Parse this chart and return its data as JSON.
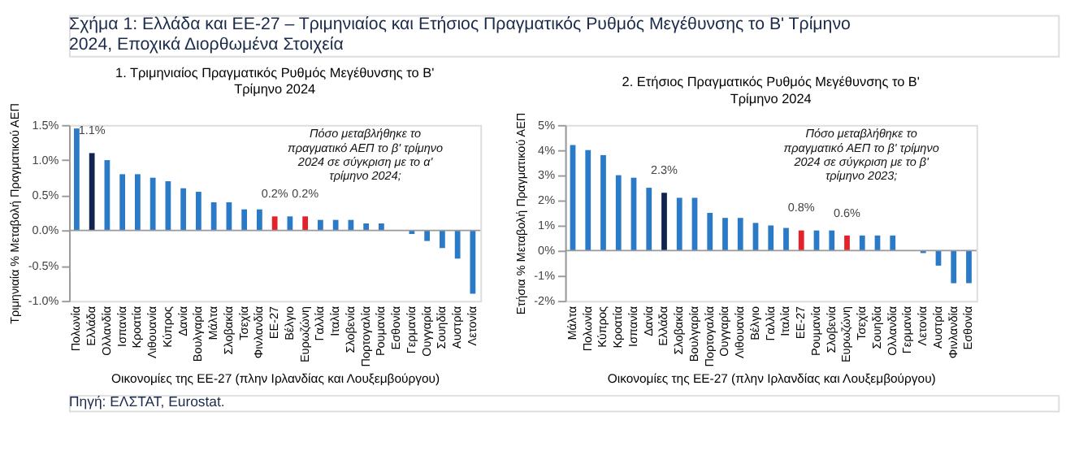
{
  "chart_data": [
    {
      "type": "bar",
      "title": "1. Τριμηνιαίος Πραγματικός Ρυθμός Μεγέθυνσης το Β' Τρίμηνο 2024",
      "xlabel": "Οικονομίες της ΕΕ-27 (πλην Ιρλανδίας και Λουξεμβούργου)",
      "ylabel": "Τριμηνιαία % Μεταβολή Πραγματικού ΑΕΠ",
      "categories": [
        "Πολωνία",
        "Ελλάδα",
        "Ολλανδία",
        "Ισπανία",
        "Κροατία",
        "Λιθουανία",
        "Κύπρος",
        "Δανία",
        "Βουλγαρία",
        "Μάλτα",
        "Σλοβακία",
        "Τσεχία",
        "Φινλανδία",
        "ΕΕ-27",
        "Βέλγιο",
        "Ευρωζώνη",
        "Γαλλία",
        "Ιταλία",
        "Σλοβενία",
        "Πορτογαλία",
        "Ρουμανία",
        "Εσθονία",
        "Γερμανία",
        "Ουγγαρία",
        "Σουηδία",
        "Αυστρία",
        "Λετονία"
      ],
      "values": [
        1.45,
        1.1,
        1.0,
        0.8,
        0.8,
        0.75,
        0.7,
        0.6,
        0.55,
        0.4,
        0.4,
        0.3,
        0.3,
        0.2,
        0.2,
        0.2,
        0.15,
        0.15,
        0.15,
        0.1,
        0.1,
        0,
        -0.05,
        -0.15,
        -0.25,
        -0.4,
        -0.9
      ],
      "value_labels": [
        null,
        "1.1%",
        null,
        null,
        null,
        null,
        null,
        null,
        null,
        null,
        null,
        null,
        null,
        "0.2%",
        null,
        "0.2%",
        null,
        null,
        null,
        null,
        null,
        null,
        null,
        null,
        null,
        null,
        null
      ],
      "colors": [
        "#2a7ac7",
        "#13234f",
        "#2a7ac7",
        "#2a7ac7",
        "#2a7ac7",
        "#2a7ac7",
        "#2a7ac7",
        "#2a7ac7",
        "#2a7ac7",
        "#2a7ac7",
        "#2a7ac7",
        "#2a7ac7",
        "#2a7ac7",
        "#e3222a",
        "#2a7ac7",
        "#e3222a",
        "#2a7ac7",
        "#2a7ac7",
        "#2a7ac7",
        "#2a7ac7",
        "#2a7ac7",
        "#2a7ac7",
        "#2a7ac7",
        "#2a7ac7",
        "#2a7ac7",
        "#2a7ac7",
        "#2a7ac7"
      ],
      "ylim": [
        -1.0,
        1.5
      ],
      "yticks": [
        {
          "value": -1.0,
          "label": "-1.0%"
        },
        {
          "value": -0.5,
          "label": "-0.5%"
        },
        {
          "value": 0,
          "label": "0.0%"
        },
        {
          "value": 0.5,
          "label": "0.5%"
        },
        {
          "value": 1.0,
          "label": "1.0%"
        },
        {
          "value": 1.5,
          "label": "1.5%"
        }
      ],
      "annotations": [
        "Πόσο μεταβλήθηκε το πραγματικό ΑΕΠ το β' τρίμηνο 2024 σε σύγκριση με το α' τρίμηνο 2024;"
      ]
    },
    {
      "type": "bar",
      "title": "2. Ετήσιος Πραγματικός Ρυθμός Μεγέθυνσης το Β' Τρίμηνο 2024",
      "xlabel": "Οικονομίες της ΕΕ-27 (πλην Ιρλανδίας και Λουξεμβούργου)",
      "ylabel": "Ετήσια % Μεταβολή Πραγματικού ΑΕΠ",
      "categories": [
        "Μάλτα",
        "Πολωνία",
        "Κύπρος",
        "Κροατία",
        "Ισπανία",
        "Δανία",
        "Ελλάδα",
        "Σλοβακία",
        "Βουλγαρία",
        "Πορτογαλία",
        "Ουγγαρία",
        "Λιθουανία",
        "Βέλγιο",
        "Γαλλία",
        "Ιταλία",
        "ΕΕ-27",
        "Ρουμανία",
        "Σλοβενία",
        "Ευρωζώνη",
        "Τσεχία",
        "Σουηδία",
        "Ολλανδία",
        "Γερμανία",
        "Λετονία",
        "Αυστρία",
        "Φινλανδία",
        "Εσθονία"
      ],
      "values": [
        4.2,
        4.0,
        3.8,
        3.0,
        2.9,
        2.5,
        2.3,
        2.1,
        2.1,
        1.5,
        1.3,
        1.3,
        1.1,
        1.0,
        0.9,
        0.8,
        0.8,
        0.8,
        0.6,
        0.6,
        0.6,
        0.6,
        0,
        -0.1,
        -0.6,
        -1.3,
        -1.3
      ],
      "value_labels": [
        null,
        null,
        null,
        null,
        null,
        null,
        "2.3%",
        null,
        null,
        null,
        null,
        null,
        null,
        null,
        null,
        "0.8%",
        null,
        null,
        "0.6%",
        null,
        null,
        null,
        null,
        null,
        null,
        null,
        null
      ],
      "colors": [
        "#2a7ac7",
        "#2a7ac7",
        "#2a7ac7",
        "#2a7ac7",
        "#2a7ac7",
        "#2a7ac7",
        "#13234f",
        "#2a7ac7",
        "#2a7ac7",
        "#2a7ac7",
        "#2a7ac7",
        "#2a7ac7",
        "#2a7ac7",
        "#2a7ac7",
        "#2a7ac7",
        "#e3222a",
        "#2a7ac7",
        "#2a7ac7",
        "#e3222a",
        "#2a7ac7",
        "#2a7ac7",
        "#2a7ac7",
        "#2a7ac7",
        "#2a7ac7",
        "#2a7ac7",
        "#2a7ac7",
        "#2a7ac7"
      ],
      "ylim": [
        -2,
        5
      ],
      "yticks": [
        {
          "value": -2,
          "label": "-2%"
        },
        {
          "value": -1,
          "label": "-1%"
        },
        {
          "value": 0,
          "label": "0%"
        },
        {
          "value": 1,
          "label": "1%"
        },
        {
          "value": 2,
          "label": "2%"
        },
        {
          "value": 3,
          "label": "3%"
        },
        {
          "value": 4,
          "label": "4%"
        },
        {
          "value": 5,
          "label": "5%"
        }
      ],
      "annotations": [
        "Πόσο μεταβλήθηκε το πραγματικό ΑΕΠ το β' τρίμηνο 2024 σε σύγκριση με το β' τρίμηνο 2023;"
      ]
    },
    {
      "type": "other",
      "title": "Σχήμα 1: Ελλάδα και ΕΕ-27 – Τριμηνιαίος και Ετήσιος Πραγματικός Ρυθμός Μεγέθυνσης το Β' Τρίμηνο 2024, Εποχικά Διορθωμένα Στοιχεία",
      "annotations": [
        "Πηγή: ΕΛΣΤΑΤ, Eurostat."
      ]
    }
  ]
}
